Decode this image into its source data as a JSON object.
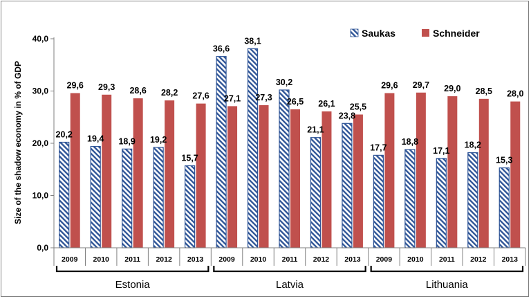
{
  "chart_data": {
    "type": "bar",
    "ylabel": "Size of the shadow economy in % of GDP",
    "ylim": [
      0,
      40
    ],
    "yticks": [
      "0,0",
      "10,0",
      "20,0",
      "30,0",
      "40,0"
    ],
    "ytick_values": [
      0,
      10,
      20,
      30,
      40
    ],
    "groups": [
      {
        "name": "Estonia",
        "years": [
          "2009",
          "2010",
          "2011",
          "2012",
          "2013"
        ]
      },
      {
        "name": "Latvia",
        "years": [
          "2009",
          "2010",
          "2011",
          "2012",
          "2013"
        ]
      },
      {
        "name": "Lithuania",
        "years": [
          "2009",
          "2010",
          "2011",
          "2012",
          "2013"
        ]
      }
    ],
    "series": [
      {
        "name": "Saukas",
        "values": [
          20.2,
          19.4,
          18.9,
          19.2,
          15.7,
          36.6,
          38.1,
          30.2,
          21.1,
          23.8,
          17.7,
          18.8,
          17.1,
          18.2,
          15.3
        ],
        "labels": [
          "20,2",
          "19,4",
          "18,9",
          "19,2",
          "15,7",
          "36,6",
          "38,1",
          "30,2",
          "21,1",
          "23,8",
          "17,7",
          "18,8",
          "17,1",
          "18,2",
          "15,3"
        ]
      },
      {
        "name": "Schneider",
        "values": [
          29.6,
          29.3,
          28.6,
          28.2,
          27.6,
          27.1,
          27.3,
          26.5,
          26.1,
          25.5,
          29.6,
          29.7,
          29.0,
          28.5,
          28.0
        ],
        "labels": [
          "29,6",
          "29,3",
          "28,6",
          "28,2",
          "27,6",
          "27,1",
          "27,3",
          "26,5",
          "26,1",
          "25,5",
          "29,6",
          "29,7",
          "29,0",
          "28,5",
          "28,0"
        ]
      }
    ],
    "legend_position": "top-right",
    "grid": false,
    "colors": {
      "saukas_stripe": "#2f5597",
      "saukas_bg": "#ffffff",
      "schneider": "#c0504d",
      "axis": "#7f7f7f",
      "text": "#000000"
    }
  }
}
